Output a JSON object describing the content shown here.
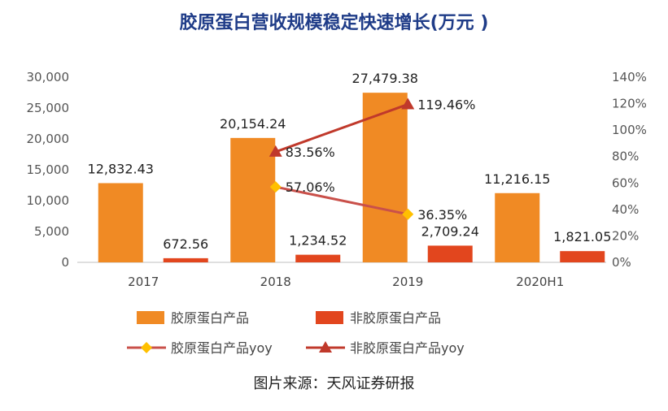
{
  "title": "胶原蛋白营收规模稳定快速增长(万元 )",
  "source": "图片来源：天风证券研报",
  "chart_data": {
    "type": "bar",
    "categories": [
      "2017",
      "2018",
      "2019",
      "2020H1"
    ],
    "y_left_ticks": [
      "0",
      "5,000",
      "10,000",
      "15,000",
      "20,000",
      "25,000",
      "30,000"
    ],
    "y_right_ticks": [
      "0%",
      "20%",
      "40%",
      "60%",
      "80%",
      "100%",
      "120%",
      "140%"
    ],
    "ylim_left": [
      0,
      30000
    ],
    "ylim_right": [
      0,
      140
    ],
    "series": [
      {
        "name": "胶原蛋白产品",
        "kind": "bar",
        "color": "#f08a24",
        "values": [
          12832.43,
          20154.24,
          27479.38,
          11216.15
        ],
        "labels": [
          "12,832.43",
          "20,154.24",
          "27,479.38",
          "11,216.15"
        ]
      },
      {
        "name": "非胶原蛋白产品",
        "kind": "bar",
        "color": "#e2461e",
        "values": [
          672.56,
          1234.52,
          2709.24,
          1821.05
        ],
        "labels": [
          "672.56",
          "1,234.52",
          "2,709.24",
          "1,821.05"
        ]
      },
      {
        "name": "胶原蛋白产品yoy",
        "kind": "line",
        "color": "#c9504a",
        "marker": "diamond",
        "marker_color": "#ffc000",
        "x": [
          "2018",
          "2019"
        ],
        "values": [
          57.06,
          36.35
        ],
        "labels": [
          "57.06%",
          "36.35%"
        ]
      },
      {
        "name": "非胶原蛋白产品yoy",
        "kind": "line",
        "color": "#c0392b",
        "marker": "triangle",
        "marker_color": "#c0392b",
        "x": [
          "2018",
          "2019"
        ],
        "values": [
          83.56,
          119.46
        ],
        "labels": [
          "83.56%",
          "119.46%"
        ]
      }
    ],
    "legend_position": "bottom"
  }
}
